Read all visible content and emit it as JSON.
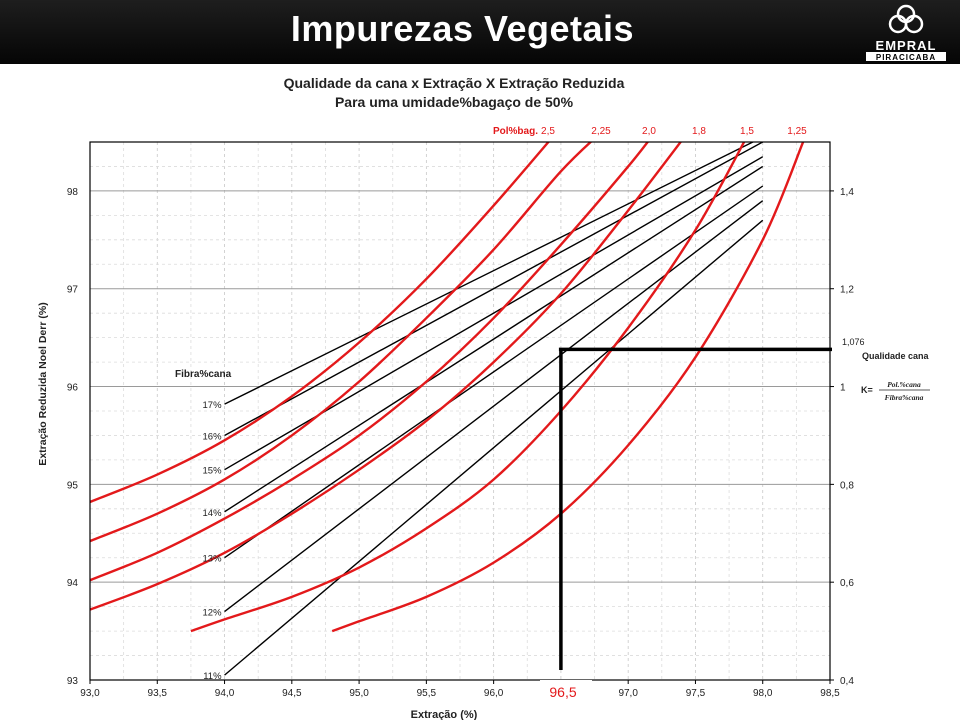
{
  "slide": {
    "title": "Impurezas Vegetais",
    "logo": {
      "name": "EMPRAL",
      "subtitle": "PIRACICABA"
    }
  },
  "colors": {
    "header_bg": "#0a0a0a",
    "pol_curve": "#e3191b",
    "fiber_line": "#000000",
    "highlight": "#000000",
    "grid": "#bfbfbf"
  },
  "chart_data": {
    "type": "line",
    "title": "Qualidade da cana x Extração X Extração Reduzida",
    "subtitle": "Para uma umidade%bagaço de 50%",
    "xlabel": "Extração (%)",
    "ylabel": "Extração Reduzida Noel Derr (%)",
    "xlim": [
      93.0,
      98.5
    ],
    "ylim": [
      93,
      98.5
    ],
    "x_ticks": [
      "93,0",
      "93,5",
      "94,0",
      "94,5",
      "95,0",
      "95,5",
      "96,0",
      "96,5",
      "97,0",
      "97,5",
      "98,0",
      "98,5"
    ],
    "y_ticks": [
      "93",
      "94",
      "95",
      "96",
      "97",
      "98"
    ],
    "right_axis": {
      "label": "Qualidade cana",
      "ylim": [
        0.4,
        1.5
      ],
      "ticks": [
        "0,4",
        "0,6",
        "0,8",
        "1",
        "1,2",
        "1,4"
      ]
    },
    "grid": true,
    "pol_label": "Pol%bag.",
    "pol_series": [
      {
        "name": "2,5",
        "x": [
          93.0,
          93.5,
          94.0,
          94.5,
          95.0,
          95.5,
          96.0,
          96.5
        ],
        "y": [
          94.82,
          95.1,
          95.45,
          95.9,
          96.45,
          97.1,
          97.85,
          98.65
        ]
      },
      {
        "name": "2,25",
        "x": [
          93.0,
          93.5,
          94.0,
          94.5,
          95.0,
          95.5,
          96.0,
          96.5,
          96.8
        ],
        "y": [
          94.42,
          94.7,
          95.05,
          95.5,
          96.05,
          96.7,
          97.4,
          98.2,
          98.6
        ]
      },
      {
        "name": "2,0",
        "x": [
          93.0,
          93.5,
          94.0,
          94.5,
          95.0,
          95.5,
          96.0,
          96.5,
          97.0,
          97.2
        ],
        "y": [
          94.02,
          94.3,
          94.65,
          95.05,
          95.5,
          96.05,
          96.7,
          97.45,
          98.25,
          98.6
        ]
      },
      {
        "name": "1,8",
        "x": [
          93.0,
          93.5,
          94.0,
          94.5,
          95.0,
          95.5,
          96.0,
          96.5,
          97.0,
          97.5
        ],
        "y": [
          93.72,
          93.98,
          94.3,
          94.7,
          95.15,
          95.65,
          96.25,
          96.95,
          97.8,
          98.7
        ]
      },
      {
        "name": "1,5",
        "x": [
          93.75,
          94.0,
          94.5,
          95.0,
          95.5,
          96.0,
          96.5,
          97.0,
          97.5,
          97.9
        ],
        "y": [
          93.5,
          93.62,
          93.85,
          94.15,
          94.55,
          95.05,
          95.75,
          96.6,
          97.6,
          98.6
        ]
      },
      {
        "name": "1,25",
        "x": [
          94.8,
          95.0,
          95.5,
          96.0,
          96.5,
          97.0,
          97.5,
          98.0,
          98.3
        ],
        "y": [
          93.5,
          93.6,
          93.85,
          94.2,
          94.7,
          95.4,
          96.3,
          97.5,
          98.5
        ]
      }
    ],
    "fiber_label": "Fibra%cana",
    "fiber_series": [
      {
        "name": "17%",
        "x": [
          94.0,
          98.0
        ],
        "y": [
          95.82,
          98.55
        ]
      },
      {
        "name": "16%",
        "x": [
          94.0,
          98.0
        ],
        "y": [
          95.5,
          98.5
        ]
      },
      {
        "name": "15%",
        "x": [
          94.0,
          98.0
        ],
        "y": [
          95.15,
          98.35
        ]
      },
      {
        "name": "14%",
        "x": [
          94.0,
          98.0
        ],
        "y": [
          94.72,
          98.25
        ]
      },
      {
        "name": "13%",
        "x": [
          94.0,
          98.0
        ],
        "y": [
          94.25,
          98.05
        ]
      },
      {
        "name": "12%",
        "x": [
          94.0,
          98.0
        ],
        "y": [
          93.7,
          97.9
        ]
      },
      {
        "name": "11%",
        "x": [
          94.0,
          98.0
        ],
        "y": [
          93.05,
          97.7
        ]
      }
    ],
    "annotations": {
      "extraction_value": "96,5",
      "quality_value": "1,076",
      "highlight_x": 96.5,
      "highlight_quality": 1.076,
      "formula_prefix": "K=",
      "formula_numerator": "Pol.%cana",
      "formula_denominator": "Fibra%cana"
    }
  }
}
